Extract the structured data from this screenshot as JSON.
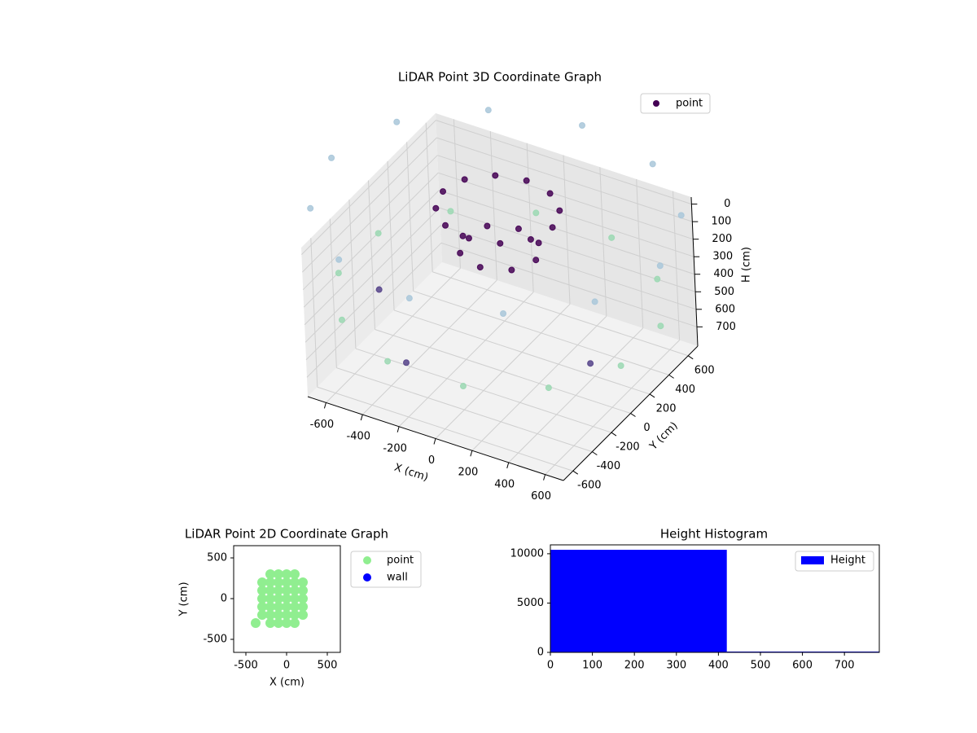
{
  "chart_data": [
    {
      "type": "scatter3d",
      "title": "LiDAR Point 3D Coordinate Graph",
      "xlabel": "X (cm)",
      "ylabel": "Y (cm)",
      "zlabel": "H (cm)",
      "xlim": [
        -700,
        700
      ],
      "ylim": [
        -700,
        700
      ],
      "zlim": [
        -40,
        810
      ],
      "z_inverted": true,
      "xticks": [
        -600,
        -400,
        -200,
        0,
        200,
        400,
        600
      ],
      "yticks": [
        -600,
        -400,
        -200,
        0,
        200,
        400,
        600
      ],
      "zticks": [
        0,
        100,
        200,
        300,
        400,
        500,
        600,
        700
      ],
      "grid": true,
      "legend": "upper right",
      "series": [
        {
          "name": "point",
          "color": "#440154",
          "x": [
            900,
            779,
            450,
            0,
            -450,
            -779,
            -900,
            -779,
            -450,
            0,
            450,
            779,
            773,
            566,
            207,
            -207,
            -566,
            -773,
            -773,
            -566,
            -207,
            207,
            566,
            773,
            -500,
            -200,
            600,
            200,
            160,
            50,
            -100,
            -250,
            -360,
            -400,
            -360,
            -250,
            -100,
            50,
            160,
            100,
            41,
            -100,
            -241,
            -300,
            -241,
            -100,
            41
          ],
          "y": [
            0,
            450,
            779,
            900,
            779,
            450,
            0,
            -450,
            -779,
            -900,
            -779,
            -450,
            207,
            566,
            773,
            773,
            566,
            207,
            -207,
            -566,
            -773,
            -773,
            -566,
            -207,
            -300,
            -600,
            -200,
            200,
            350,
            460,
            500,
            460,
            350,
            200,
            50,
            -60,
            -100,
            -60,
            50,
            200,
            341,
            400,
            341,
            200,
            59,
            0,
            59
          ],
          "z": [
            -100,
            -100,
            -100,
            -100,
            -100,
            -100,
            -100,
            -100,
            -100,
            -100,
            -100,
            -100,
            400,
            400,
            400,
            400,
            400,
            400,
            400,
            400,
            400,
            400,
            400,
            400,
            350,
            500,
            450,
            30,
            30,
            30,
            30,
            30,
            30,
            30,
            30,
            30,
            30,
            30,
            30,
            250,
            250,
            250,
            250,
            250,
            250,
            250,
            250
          ],
          "colors": [
            "#a9c7d9",
            "#a9c7d9",
            "#a9c7d9",
            "#a9c7d9",
            "#a9c7d9",
            "#a9c7d9",
            "#a9c7d9",
            "#a9c7d9",
            "#a9c7d9",
            "#a9c7d9",
            "#a9c7d9",
            "#a9c7d9",
            "#9bd8b3",
            "#9bd8b3",
            "#9bd8b3",
            "#9bd8b3",
            "#9bd8b3",
            "#9bd8b3",
            "#9bd8b3",
            "#9bd8b3",
            "#9bd8b3",
            "#9bd8b3",
            "#9bd8b3",
            "#9bd8b3",
            "#55438a",
            "#55438a",
            "#55438a",
            "#440154",
            "#440154",
            "#440154",
            "#440154",
            "#440154",
            "#440154",
            "#440154",
            "#440154",
            "#440154",
            "#440154",
            "#440154",
            "#440154",
            "#440154",
            "#440154",
            "#440154",
            "#440154",
            "#440154",
            "#440154",
            "#440154",
            "#440154"
          ]
        }
      ]
    },
    {
      "type": "scatter",
      "title": "LiDAR Point 2D Coordinate Graph",
      "xlabel": "X (cm)",
      "ylabel": "Y (cm)",
      "xlim": [
        -650,
        660
      ],
      "ylim": [
        -660,
        650
      ],
      "xticks": [
        -500,
        0,
        500
      ],
      "yticks": [
        -500,
        0,
        500
      ],
      "legend": "outside right",
      "series": [
        {
          "name": "point",
          "color": "#90ee90",
          "x": [
            -300,
            -300,
            -300,
            -300,
            -300,
            -200,
            -200,
            -200,
            -200,
            -200,
            -200,
            -200,
            -100,
            -100,
            -100,
            -100,
            -100,
            -100,
            -100,
            0,
            0,
            0,
            0,
            0,
            0,
            0,
            100,
            100,
            100,
            100,
            100,
            100,
            100,
            200,
            200,
            200,
            200,
            200,
            -380
          ],
          "y": [
            -200,
            -100,
            0,
            100,
            200,
            -300,
            -200,
            -100,
            0,
            100,
            200,
            300,
            -300,
            -200,
            -100,
            0,
            100,
            200,
            300,
            -300,
            -200,
            -100,
            0,
            100,
            200,
            300,
            -300,
            -200,
            -100,
            0,
            100,
            200,
            300,
            -200,
            -100,
            0,
            100,
            200,
            -300
          ]
        },
        {
          "name": "wall",
          "color": "#0000ff",
          "x": [],
          "y": []
        }
      ]
    },
    {
      "type": "histogram",
      "title": "Height Histogram",
      "bins": [
        0,
        420,
        783
      ],
      "xlim": [
        0,
        783
      ],
      "ylim": [
        0,
        10900
      ],
      "xticks": [
        0,
        100,
        200,
        300,
        400,
        500,
        600,
        700
      ],
      "yticks": [
        0,
        5000,
        10000
      ],
      "legend": "upper right",
      "series": [
        {
          "name": "Height",
          "color": "#0000ff",
          "values": [
            10400,
            80
          ]
        }
      ]
    }
  ]
}
